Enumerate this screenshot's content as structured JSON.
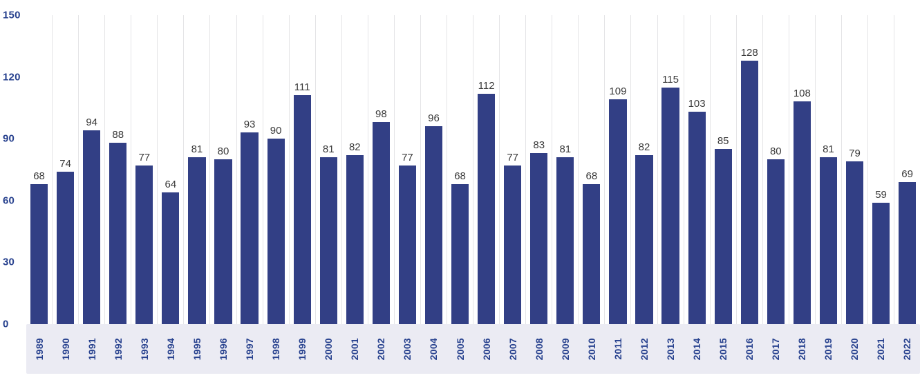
{
  "chart_data": {
    "type": "bar",
    "title": "",
    "xlabel": "",
    "ylabel": "",
    "categories": [
      "1989",
      "1990",
      "1991",
      "1992",
      "1993",
      "1994",
      "1995",
      "1996",
      "1997",
      "1998",
      "1999",
      "2000",
      "2001",
      "2002",
      "2003",
      "2004",
      "2005",
      "2006",
      "2007",
      "2008",
      "2009",
      "2010",
      "2011",
      "2012",
      "2013",
      "2014",
      "2015",
      "2016",
      "2017",
      "2018",
      "2019",
      "2020",
      "2021",
      "2022"
    ],
    "values": [
      68,
      74,
      94,
      88,
      77,
      64,
      81,
      80,
      93,
      90,
      111,
      81,
      82,
      98,
      77,
      96,
      68,
      112,
      77,
      83,
      81,
      68,
      109,
      82,
      115,
      103,
      85,
      128,
      80,
      108,
      81,
      79,
      59,
      69
    ],
    "ylim": [
      0,
      150
    ],
    "y_ticks": [
      150,
      120,
      90,
      60,
      30,
      0
    ],
    "grid": "vertical-only",
    "legend": "none",
    "colors": {
      "bar": "#323f85",
      "axis_labels": "#27418e",
      "value_labels": "#3a3a3a",
      "x_band_background": "#ebebf3",
      "gridline": "#e4e4e6"
    }
  }
}
